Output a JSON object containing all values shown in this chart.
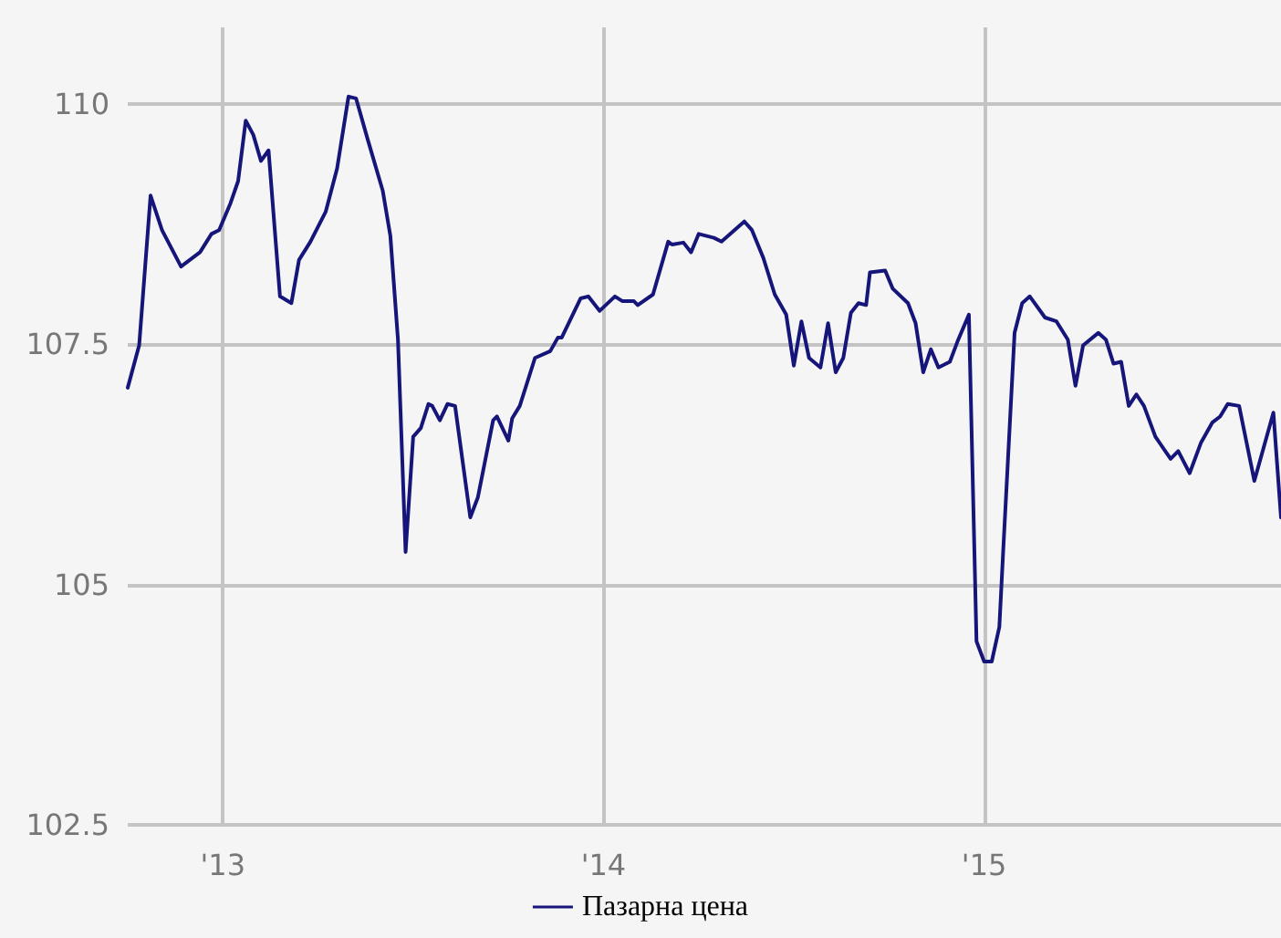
{
  "chart_data": {
    "type": "line",
    "xlim": [
      2012.75,
      2015.78
    ],
    "xticks": [
      {
        "value": 2013,
        "label": "'13"
      },
      {
        "value": 2014,
        "label": "'14"
      },
      {
        "value": 2015,
        "label": "'15"
      }
    ],
    "ylim": [
      102.5,
      110.8
    ],
    "yticks": [
      102.5,
      105,
      107.5,
      110
    ],
    "grid": true,
    "legend": "bottom",
    "marker": "none",
    "line_style": "solid",
    "x": [
      2012.75,
      2012.78,
      2012.81,
      2012.84,
      2012.89,
      2012.94,
      2012.97,
      2012.99,
      2013.02,
      2013.04,
      2013.06,
      2013.08,
      2013.1,
      2013.12,
      2013.15,
      2013.18,
      2013.2,
      2013.23,
      2013.27,
      2013.3,
      2013.33,
      2013.35,
      2013.38,
      2013.42,
      2013.44,
      2013.46,
      2013.48,
      2013.5,
      2013.52,
      2013.54,
      2013.55,
      2013.57,
      2013.59,
      2013.61,
      2013.65,
      2013.67,
      2013.71,
      2013.72,
      2013.75,
      2013.76,
      2013.78,
      2013.82,
      2013.86,
      2013.88,
      2013.89,
      2013.94,
      2013.96,
      2013.99,
      2014.03,
      2014.05,
      2014.08,
      2014.09,
      2014.13,
      2014.17,
      2014.18,
      2014.21,
      2014.23,
      2014.25,
      2014.29,
      2014.31,
      2014.37,
      2014.39,
      2014.42,
      2014.45,
      2014.48,
      2014.5,
      2014.52,
      2014.54,
      2014.57,
      2014.59,
      2014.61,
      2014.63,
      2014.65,
      2014.67,
      2014.69,
      2014.7,
      2014.74,
      2014.76,
      2014.8,
      2014.82,
      2014.84,
      2014.86,
      2014.88,
      2014.91,
      2014.93,
      2014.96,
      2014.98,
      2015.0,
      2015.02,
      2015.04,
      2015.05,
      2015.08,
      2015.1,
      2015.12,
      2015.16,
      2015.19,
      2015.22,
      2015.24,
      2015.26,
      2015.3,
      2015.32,
      2015.34,
      2015.36,
      2015.38,
      2015.4,
      2015.42,
      2015.45,
      2015.49,
      2015.51,
      2015.54,
      2015.57,
      2015.6,
      2015.62,
      2015.64,
      2015.67,
      2015.71,
      2015.76,
      2015.78
    ],
    "series": [
      {
        "name": "Пазарна цена",
        "color": "#15157a",
        "values": [
          107.05,
          107.49,
          109.05,
          108.69,
          108.31,
          108.46,
          108.65,
          108.69,
          108.97,
          109.2,
          109.83,
          109.68,
          109.41,
          109.52,
          108.0,
          107.93,
          108.38,
          108.57,
          108.88,
          109.33,
          110.08,
          110.06,
          109.64,
          109.1,
          108.63,
          107.55,
          105.34,
          106.54,
          106.63,
          106.88,
          106.86,
          106.71,
          106.88,
          106.86,
          105.7,
          105.91,
          106.71,
          106.75,
          106.5,
          106.73,
          106.86,
          107.36,
          107.43,
          107.57,
          107.57,
          107.98,
          108.0,
          107.85,
          108.0,
          107.95,
          107.95,
          107.91,
          108.02,
          108.57,
          108.54,
          108.56,
          108.46,
          108.65,
          108.61,
          108.57,
          108.78,
          108.69,
          108.4,
          108.02,
          107.81,
          107.28,
          107.74,
          107.36,
          107.26,
          107.72,
          107.21,
          107.36,
          107.83,
          107.93,
          107.91,
          108.25,
          108.27,
          108.08,
          107.93,
          107.72,
          107.21,
          107.45,
          107.26,
          107.32,
          107.53,
          107.81,
          104.41,
          104.2,
          104.2,
          104.56,
          105.34,
          107.62,
          107.93,
          108.0,
          107.78,
          107.74,
          107.55,
          107.07,
          107.49,
          107.62,
          107.55,
          107.3,
          107.32,
          106.86,
          106.98,
          106.86,
          106.54,
          106.31,
          106.39,
          106.16,
          106.48,
          106.69,
          106.75,
          106.88,
          106.86,
          106.08,
          106.79,
          105.7
        ]
      }
    ]
  }
}
